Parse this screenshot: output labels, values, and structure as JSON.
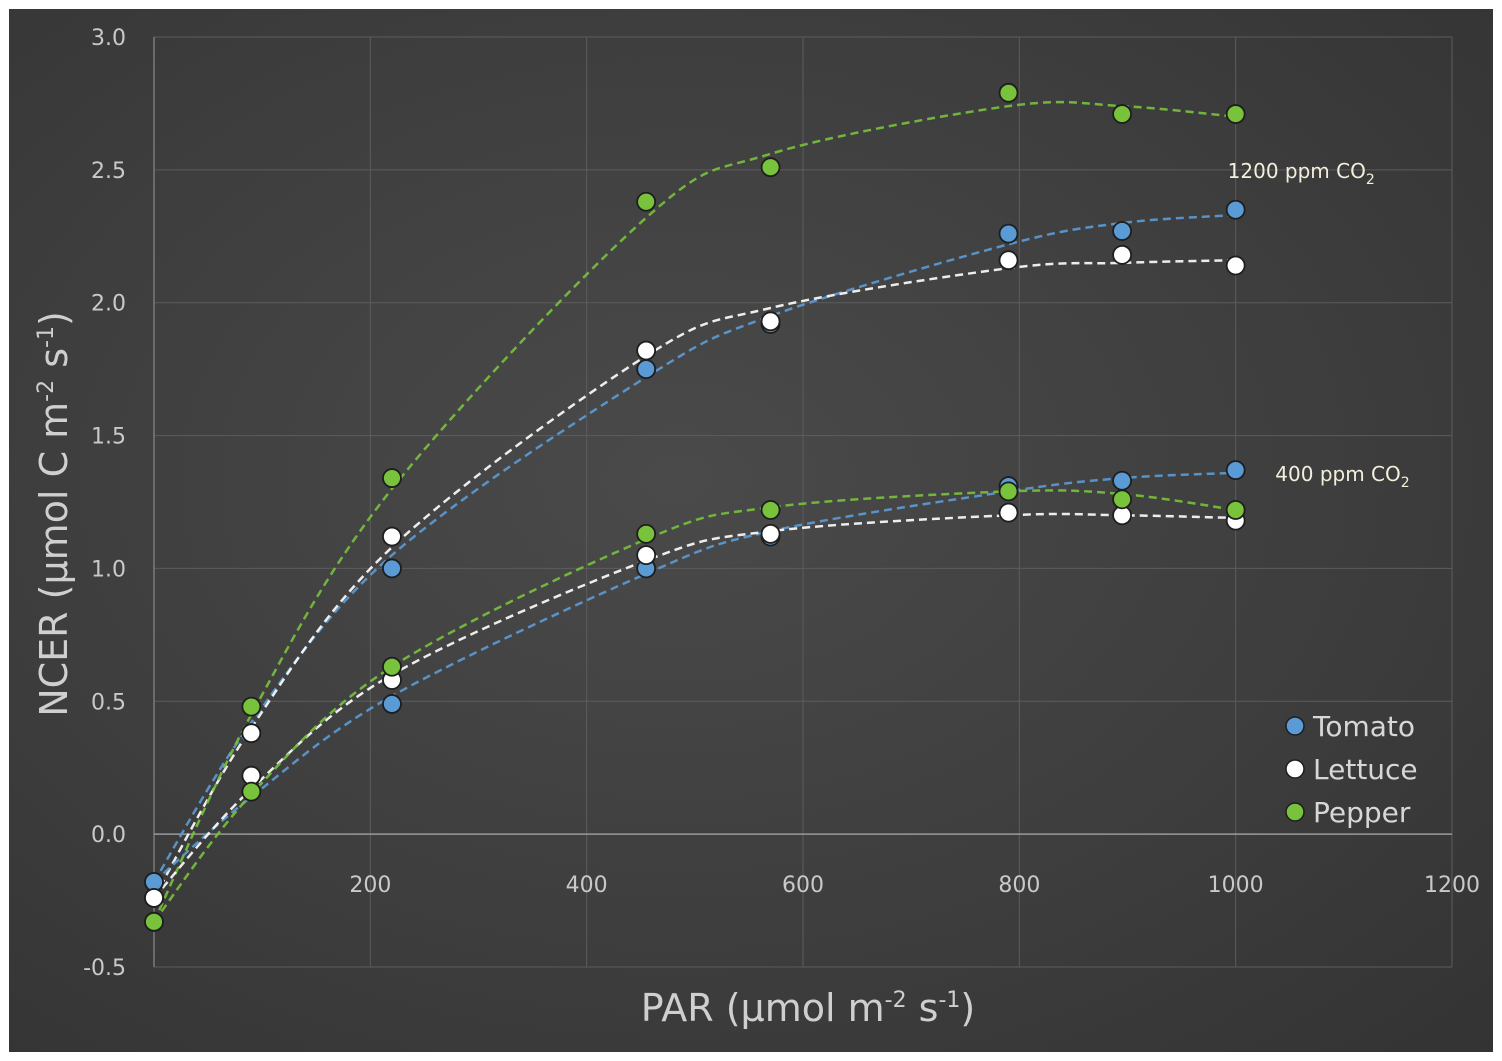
{
  "chart_data": {
    "type": "scatter",
    "title": "",
    "xlabel": {
      "main": "PAR (µmol m",
      "sup1": "-2",
      "mid": " s",
      "sup2": "-1",
      "end": ")"
    },
    "ylabel": {
      "main": "NCER (µmol C m",
      "sup1": "-2",
      "mid": " s",
      "sup2": "-1",
      "end": ")"
    },
    "xlim": [
      0,
      1200
    ],
    "ylim": [
      -0.5,
      3.0
    ],
    "xticks": [
      200,
      400,
      600,
      800,
      1000,
      1200
    ],
    "xtick_labels": [
      "200",
      "400",
      "600",
      "800",
      "1000",
      "1200"
    ],
    "yticks": [
      -0.5,
      0.0,
      0.5,
      1.0,
      1.5,
      2.0,
      2.5,
      3.0
    ],
    "ytick_labels": [
      "-0.5",
      "0.0",
      "0.5",
      "1.0",
      "1.5",
      "2.0",
      "2.5",
      "3.0"
    ],
    "grid": true,
    "legend_position": "bottom-right",
    "annotations": [
      {
        "text": "1200 ppm CO",
        "sub": "2",
        "anchor_x": 1000,
        "anchor_y": 2.5
      },
      {
        "text": "400 ppm CO",
        "sub": "2",
        "anchor_x": 1020,
        "anchor_y": 1.36
      }
    ],
    "series": [
      {
        "name": "Tomato",
        "color": "#5b9bd5",
        "co2": "1200",
        "x": [
          0,
          90,
          220,
          455,
          570,
          790,
          895,
          1000
        ],
        "y": [
          -0.18,
          0.38,
          1.0,
          1.75,
          1.92,
          2.26,
          2.27,
          2.35
        ],
        "trend": [
          [
            0,
            -0.18
          ],
          [
            90,
            0.42
          ],
          [
            220,
            1.05
          ],
          [
            455,
            1.72
          ],
          [
            570,
            1.95
          ],
          [
            790,
            2.22
          ],
          [
            895,
            2.3
          ],
          [
            1000,
            2.33
          ]
        ]
      },
      {
        "name": "Lettuce",
        "color": "#ffffff",
        "co2": "1200",
        "x": [
          0,
          90,
          220,
          455,
          570,
          790,
          895,
          1000
        ],
        "y": [
          -0.24,
          0.38,
          1.12,
          1.82,
          1.93,
          2.16,
          2.18,
          2.14
        ],
        "trend": [
          [
            0,
            -0.24
          ],
          [
            90,
            0.4
          ],
          [
            220,
            1.08
          ],
          [
            455,
            1.8
          ],
          [
            570,
            1.98
          ],
          [
            790,
            2.13
          ],
          [
            895,
            2.15
          ],
          [
            1000,
            2.16
          ]
        ]
      },
      {
        "name": "Pepper",
        "color": "#78c23c",
        "co2": "1200",
        "x": [
          0,
          90,
          220,
          455,
          570,
          790,
          895,
          1000
        ],
        "y": [
          -0.33,
          0.48,
          1.34,
          2.38,
          2.51,
          2.79,
          2.71,
          2.71
        ],
        "trend": [
          [
            0,
            -0.33
          ],
          [
            90,
            0.45
          ],
          [
            220,
            1.3
          ],
          [
            455,
            2.32
          ],
          [
            570,
            2.56
          ],
          [
            790,
            2.74
          ],
          [
            895,
            2.74
          ],
          [
            1000,
            2.7
          ]
        ]
      },
      {
        "name": "Tomato",
        "color": "#5b9bd5",
        "co2": "400",
        "x": [
          0,
          90,
          220,
          455,
          570,
          790,
          895,
          1000
        ],
        "y": [
          -0.18,
          0.16,
          0.49,
          1.0,
          1.12,
          1.31,
          1.33,
          1.37
        ],
        "trend": [
          [
            0,
            -0.18
          ],
          [
            90,
            0.14
          ],
          [
            220,
            0.52
          ],
          [
            455,
            0.98
          ],
          [
            570,
            1.14
          ],
          [
            790,
            1.29
          ],
          [
            895,
            1.34
          ],
          [
            1000,
            1.36
          ]
        ]
      },
      {
        "name": "Lettuce",
        "color": "#ffffff",
        "co2": "400",
        "x": [
          0,
          90,
          220,
          455,
          570,
          790,
          895,
          1000
        ],
        "y": [
          -0.24,
          0.22,
          0.58,
          1.05,
          1.13,
          1.21,
          1.2,
          1.18
        ],
        "trend": [
          [
            0,
            -0.24
          ],
          [
            90,
            0.17
          ],
          [
            220,
            0.6
          ],
          [
            455,
            1.03
          ],
          [
            570,
            1.14
          ],
          [
            790,
            1.2
          ],
          [
            895,
            1.2
          ],
          [
            1000,
            1.19
          ]
        ]
      },
      {
        "name": "Pepper",
        "color": "#78c23c",
        "co2": "400",
        "x": [
          0,
          90,
          220,
          455,
          570,
          790,
          895,
          1000
        ],
        "y": [
          -0.33,
          0.16,
          0.63,
          1.13,
          1.22,
          1.29,
          1.26,
          1.22
        ],
        "trend": [
          [
            0,
            -0.33
          ],
          [
            90,
            0.15
          ],
          [
            220,
            0.63
          ],
          [
            455,
            1.11
          ],
          [
            570,
            1.23
          ],
          [
            790,
            1.29
          ],
          [
            895,
            1.28
          ],
          [
            1000,
            1.22
          ]
        ]
      }
    ],
    "legend": [
      {
        "name": "Tomato",
        "color": "#5b9bd5"
      },
      {
        "name": "Lettuce",
        "color": "#ffffff"
      },
      {
        "name": "Pepper",
        "color": "#78c23c"
      }
    ]
  }
}
